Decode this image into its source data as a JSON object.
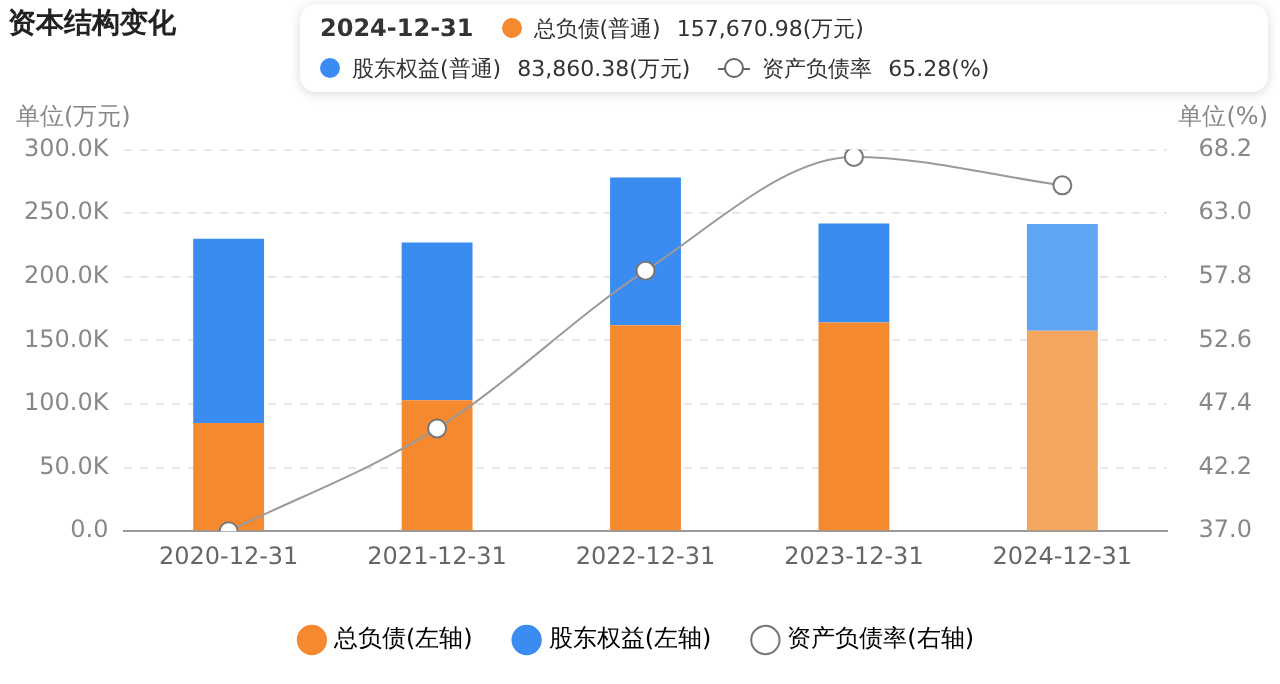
{
  "chart_data": {
    "type": "bar",
    "title": "资本结构变化",
    "ylabel": "单位(万元)",
    "y2label": "单位(%)",
    "categories": [
      "2020-12-31",
      "2021-12-31",
      "2022-12-31",
      "2023-12-31",
      "2024-12-31"
    ],
    "stacked": true,
    "series": [
      {
        "name": "总负债(左轴)",
        "color": "#f5892f",
        "colors": [
          "#f5892f",
          "#f5892f",
          "#f5892f",
          "#f5892f",
          "#f4a55e"
        ],
        "values": [
          85000,
          103000,
          162000,
          164000,
          157670.98
        ]
      },
      {
        "name": "股东权益(左轴)",
        "color": "#3b8cf0",
        "colors": [
          "#3b8cf0",
          "#3b8cf0",
          "#3b8cf0",
          "#3b8cf0",
          "#5ea5f4"
        ],
        "values": [
          145000,
          124000,
          116000,
          78000,
          83860.38
        ]
      },
      {
        "name": "资产负债率(右轴)",
        "type": "line",
        "axis": "y2",
        "color": "#9a9a9a",
        "values": [
          37.0,
          45.4,
          58.3,
          67.6,
          65.28
        ]
      }
    ],
    "ylim": [
      0,
      300000
    ],
    "yticks": [
      {
        "value": 0,
        "label": "0.0"
      },
      {
        "value": 50000,
        "label": "50.0K"
      },
      {
        "value": 100000,
        "label": "100.0K"
      },
      {
        "value": 150000,
        "label": "150.0K"
      },
      {
        "value": 200000,
        "label": "200.0K"
      },
      {
        "value": 250000,
        "label": "250.0K"
      },
      {
        "value": 300000,
        "label": "300.0K"
      }
    ],
    "y2lim": [
      37.0,
      68.2
    ],
    "y2ticks": [
      {
        "value": 37.0,
        "label": "37.0"
      },
      {
        "value": 42.2,
        "label": "42.2"
      },
      {
        "value": 47.4,
        "label": "47.4"
      },
      {
        "value": 52.6,
        "label": "52.6"
      },
      {
        "value": 57.8,
        "label": "57.8"
      },
      {
        "value": 63.0,
        "label": "63.0"
      },
      {
        "value": 68.2,
        "label": "68.2"
      }
    ],
    "grid": "y",
    "legend": "bottom",
    "marker": "circle",
    "line_style": "solid",
    "annotations": [
      "2024-12-31",
      "总负债(普通)",
      "157,670.98(万元)",
      "股东权益(普通)",
      "83,860.38(万元)",
      "资产负债率",
      "65.28(%)"
    ]
  }
}
